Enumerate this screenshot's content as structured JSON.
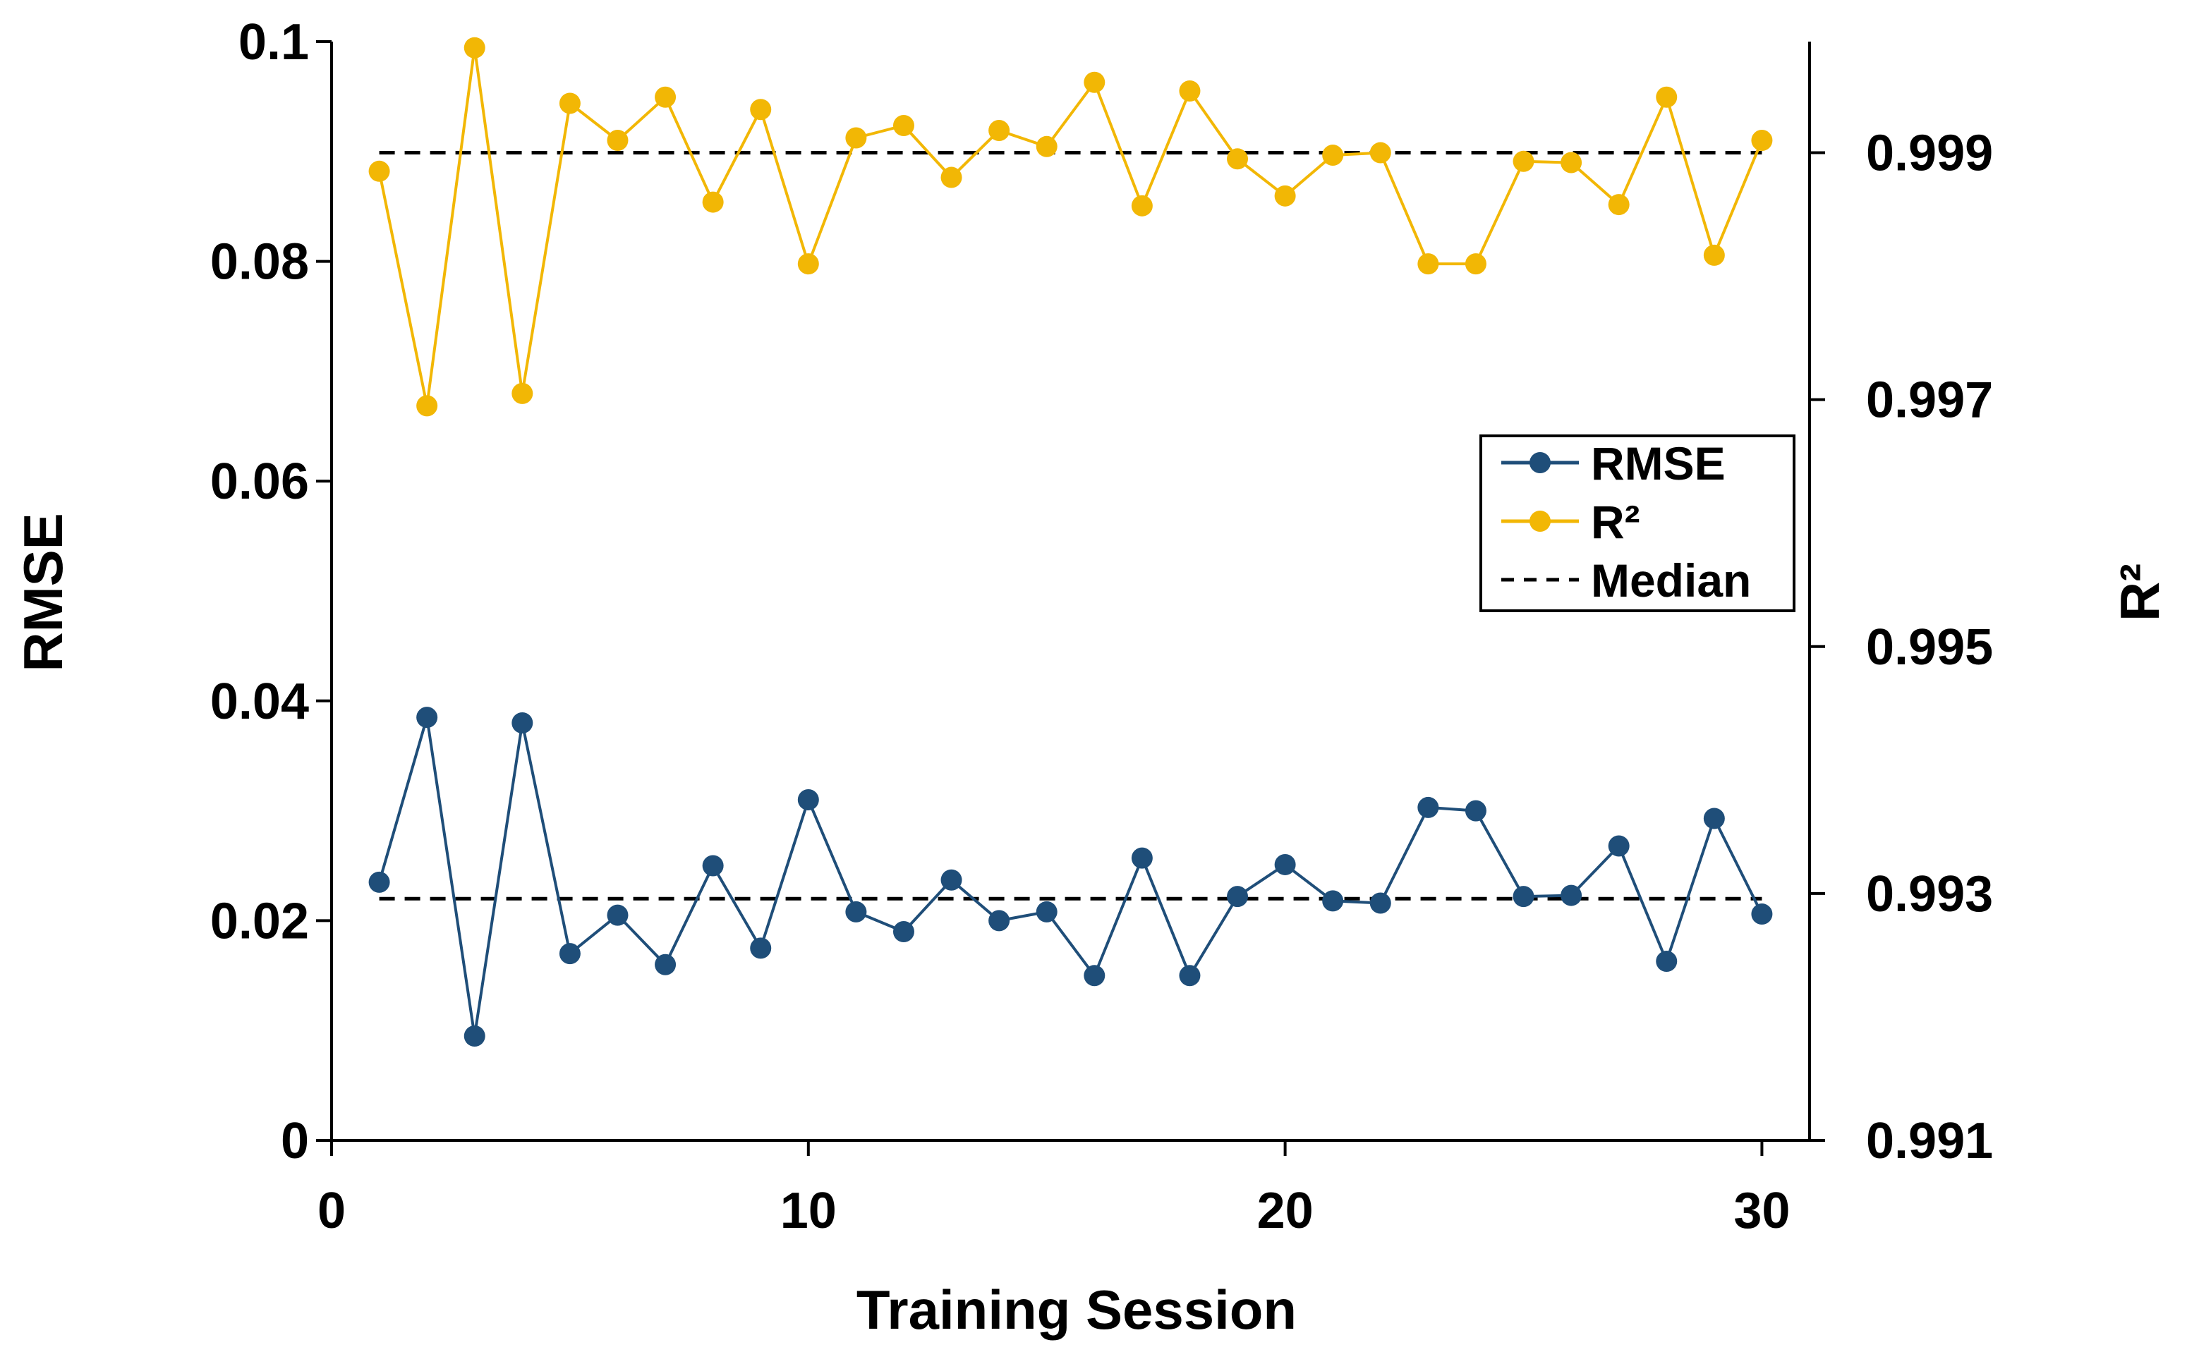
{
  "chart_data": {
    "type": "line",
    "xlabel": "Training Session",
    "ylabel": "RMSE",
    "y2label": "R²",
    "xlim": [
      0,
      31
    ],
    "ylim": [
      0,
      0.1
    ],
    "y2lim": [
      0.991,
      0.9999
    ],
    "xticks": [
      0,
      10,
      20,
      30
    ],
    "xtick_labels": [
      "0",
      "10",
      "20",
      "30"
    ],
    "yticks": [
      0,
      0.02,
      0.04,
      0.06,
      0.08,
      0.1
    ],
    "ytick_labels": [
      "0",
      "0.02",
      "0.04",
      "0.06",
      "0.08",
      "0.1"
    ],
    "y2ticks": [
      0.991,
      0.993,
      0.995,
      0.997,
      0.999
    ],
    "y2tick_labels": [
      "0.991",
      "0.993",
      "0.995",
      "0.997",
      "0.999"
    ],
    "grid": false,
    "legend_position": "center-right",
    "colors": {
      "rmse": "#1f4e79",
      "r2": "#f2b705",
      "median": "#000000",
      "axis": "#000000"
    },
    "x": [
      1,
      2,
      3,
      4,
      5,
      6,
      7,
      8,
      9,
      10,
      11,
      12,
      13,
      14,
      15,
      16,
      17,
      18,
      19,
      20,
      21,
      22,
      23,
      24,
      25,
      26,
      27,
      28,
      29,
      30
    ],
    "series": [
      {
        "name": "RMSE",
        "axis": "left",
        "color": "#1f4e79",
        "values": [
          0.0235,
          0.0385,
          0.0095,
          0.038,
          0.017,
          0.0205,
          0.016,
          0.025,
          0.0175,
          0.031,
          0.0208,
          0.019,
          0.0237,
          0.02,
          0.0208,
          0.015,
          0.0257,
          0.015,
          0.0222,
          0.0251,
          0.0218,
          0.0216,
          0.0303,
          0.03,
          0.0222,
          0.0223,
          0.0268,
          0.0163,
          0.0293,
          0.0206
        ]
      },
      {
        "name": "R²",
        "axis": "right",
        "color": "#f2b705",
        "values": [
          0.99885,
          0.99695,
          0.99985,
          0.99705,
          0.9994,
          0.9991,
          0.99945,
          0.9986,
          0.99935,
          0.9981,
          0.99912,
          0.99922,
          0.9988,
          0.99918,
          0.99905,
          0.99957,
          0.99857,
          0.9995,
          0.99895,
          0.99865,
          0.99898,
          0.999,
          0.9981,
          0.9981,
          0.99893,
          0.99892,
          0.99858,
          0.99945,
          0.99817,
          0.9991
        ]
      }
    ],
    "median_lines": [
      {
        "name": "Median",
        "axis": "left",
        "value": 0.022,
        "x_range": [
          1,
          30
        ]
      },
      {
        "name": "Median",
        "axis": "right",
        "value": 0.999,
        "x_range": [
          1,
          30
        ]
      }
    ],
    "legend": [
      {
        "label": "RMSE",
        "style": "line-marker",
        "color": "#1f4e79"
      },
      {
        "label": "R²",
        "style": "line-marker",
        "color": "#f2b705"
      },
      {
        "label": "Median",
        "style": "dashed",
        "color": "#000000"
      }
    ]
  }
}
